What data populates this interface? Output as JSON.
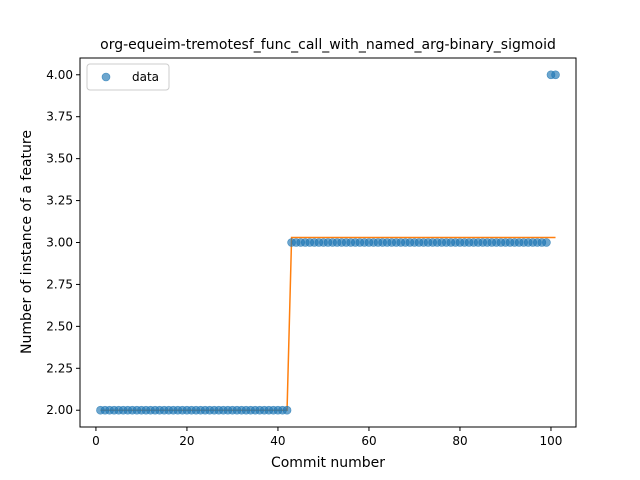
{
  "chart_data": {
    "type": "scatter",
    "title": "org-equeim-tremotesf_func_call_with_named_arg-binary_sigmoid",
    "xlabel": "Commit number",
    "ylabel": "Number of instance of a feature",
    "xlim": [
      -3.5,
      105.5
    ],
    "ylim": [
      1.9,
      4.1
    ],
    "xticks": [
      0,
      20,
      40,
      60,
      80,
      100
    ],
    "yticks": [
      2.0,
      2.25,
      2.5,
      2.75,
      3.0,
      3.25,
      3.5,
      3.75,
      4.0
    ],
    "ytick_labels": [
      "2.00",
      "2.25",
      "2.50",
      "2.75",
      "3.00",
      "3.25",
      "3.50",
      "3.75",
      "4.00"
    ],
    "legend": {
      "placement": "top-left",
      "entries": [
        "data"
      ]
    },
    "grid": false,
    "colors": {
      "data": "#1f77b4",
      "fit": "#ff7f0e"
    },
    "series": [
      {
        "name": "data",
        "kind": "scatter",
        "segments": [
          {
            "x_from": 1,
            "x_to": 42,
            "y": 2.0
          },
          {
            "x_from": 43,
            "x_to": 99,
            "y": 3.0
          },
          {
            "x_from": 100,
            "x_to": 101,
            "y": 4.0
          }
        ]
      },
      {
        "kind": "line",
        "x": [
          1,
          42,
          43,
          101
        ],
        "y": [
          2.0,
          2.0,
          3.03,
          3.03
        ]
      }
    ]
  }
}
